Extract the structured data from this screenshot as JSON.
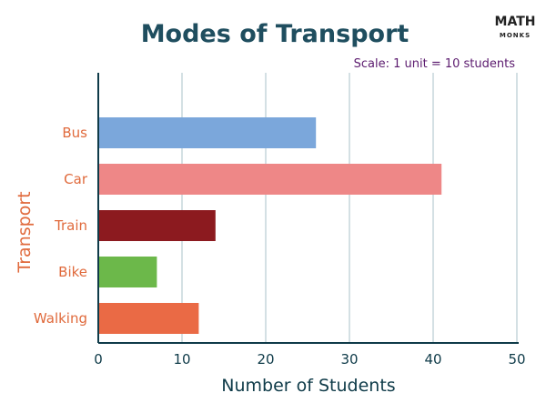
{
  "brand": {
    "line1": "MATH",
    "line2": "MONKS",
    "accent": "#f0a11e"
  },
  "chart_data": {
    "type": "bar",
    "orientation": "horizontal",
    "title": "Modes of Transport",
    "subtitle": "Scale: 1 unit = 10 students",
    "xlabel": "Number of Students",
    "ylabel": "Transport",
    "xlim": [
      0,
      50
    ],
    "xticks": [
      0,
      10,
      20,
      30,
      40,
      50
    ],
    "grid": "vertical",
    "categories": [
      "Bus",
      "Car",
      "Train",
      "Bike",
      "Walking"
    ],
    "values": [
      26,
      41,
      14,
      7,
      12
    ],
    "colors": [
      "#7ba7db",
      "#ee8787",
      "#8c1a1f",
      "#6cb84a",
      "#ea6a45"
    ],
    "theme": {
      "title": "#1f4e5f",
      "category": "#e06a3c",
      "subtitle": "#5b1a6e",
      "axis": "#0f3b49",
      "grid": "#a9c0c8"
    }
  }
}
